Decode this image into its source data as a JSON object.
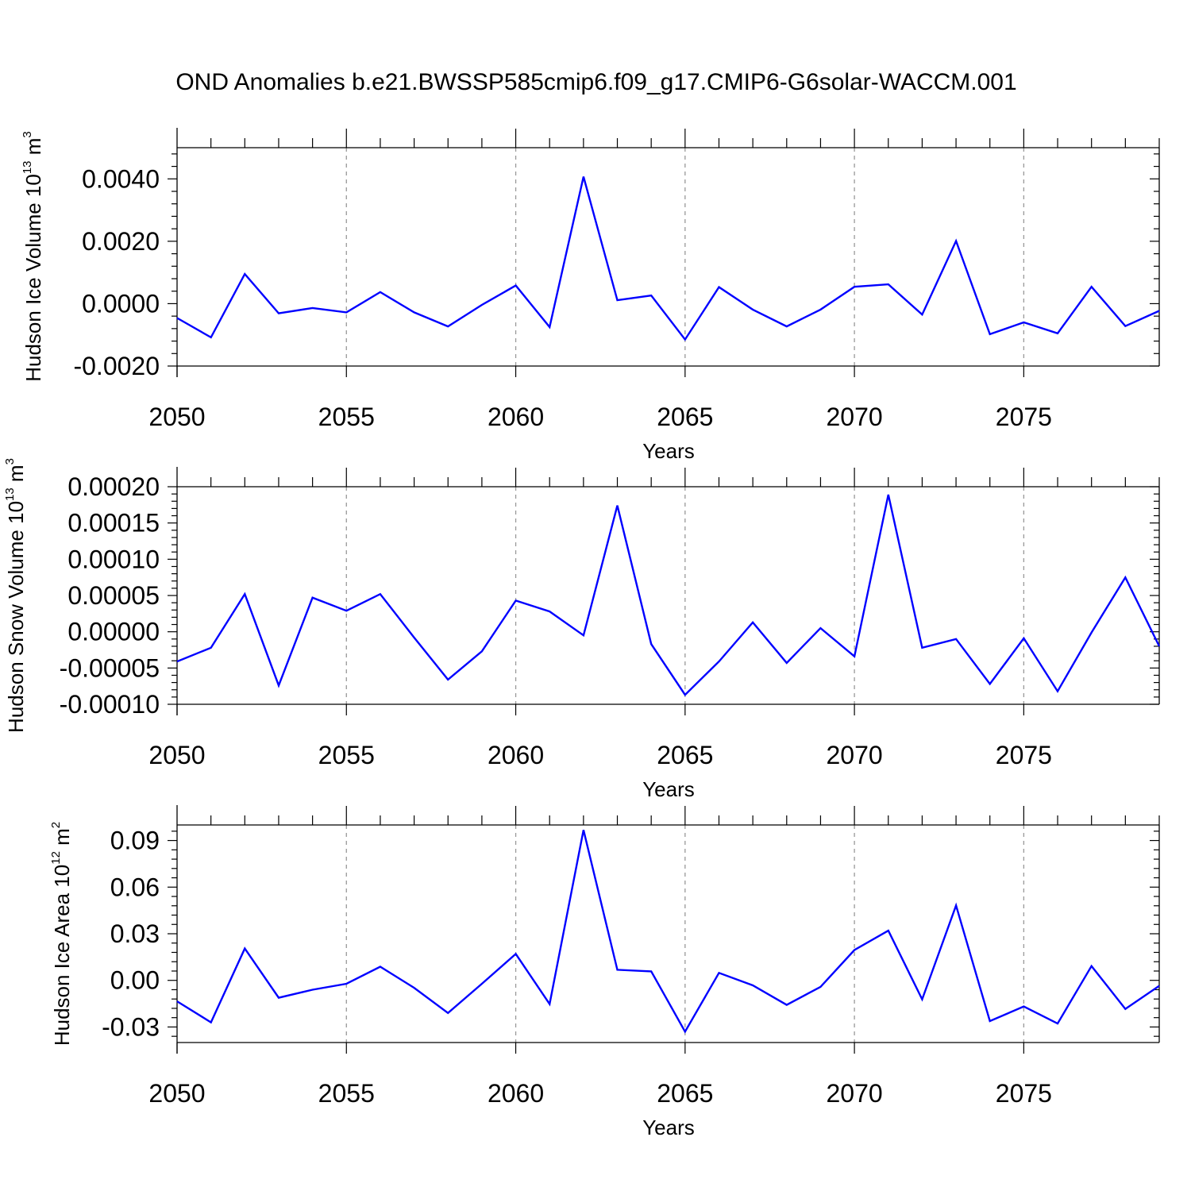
{
  "title": "OND Anomalies b.e21.BWSSP585cmip6.f09_g17.CMIP6-G6solar-WACCM.001",
  "colors": {
    "line": "#0000ff",
    "frame": "#000000",
    "grid": "#999999"
  },
  "chart_data": [
    {
      "type": "line",
      "xlabel": "Years",
      "ylabel": {
        "text": "Hudson Ice Volume 10",
        "exp": "13",
        "unit": " m",
        "unit_exp": "3"
      },
      "xlim": [
        2050,
        2079
      ],
      "ylim": [
        -0.002,
        0.005
      ],
      "xticks": [
        2050,
        2055,
        2060,
        2065,
        2070,
        2075
      ],
      "xtick_labels": [
        "2050",
        "2055",
        "2060",
        "2065",
        "2070",
        "2075"
      ],
      "yticks": [
        -0.002,
        0.0,
        0.002,
        0.004
      ],
      "ytick_labels": [
        "-0.0020",
        "0.0000",
        "0.0020",
        "0.0040"
      ],
      "grid": "vertical dashed at major x ticks",
      "x": [
        2050,
        2051,
        2052,
        2053,
        2054,
        2055,
        2056,
        2057,
        2058,
        2059,
        2060,
        2061,
        2062,
        2063,
        2064,
        2065,
        2066,
        2067,
        2068,
        2069,
        2070,
        2071,
        2072,
        2073,
        2074,
        2075,
        2076,
        2077,
        2078,
        2079
      ],
      "y": [
        -0.00046,
        -0.00108,
        0.00095,
        -0.00031,
        -0.00014,
        -0.00028,
        0.00037,
        -0.00028,
        -0.00073,
        -4e-05,
        0.00058,
        -0.00075,
        0.00407,
        0.00011,
        0.00026,
        -0.00115,
        0.00053,
        -0.00019,
        -0.00073,
        -0.00019,
        0.00054,
        0.00062,
        -0.00035,
        0.00201,
        -0.00098,
        -0.0006,
        -0.00095,
        0.00054,
        -0.00072,
        -0.00023
      ]
    },
    {
      "type": "line",
      "xlabel": "Years",
      "ylabel": {
        "text": "Hudson Snow Volume 10",
        "exp": "13",
        "unit": " m",
        "unit_exp": "3"
      },
      "xlim": [
        2050,
        2079
      ],
      "ylim": [
        -0.0001,
        0.0002
      ],
      "xticks": [
        2050,
        2055,
        2060,
        2065,
        2070,
        2075
      ],
      "xtick_labels": [
        "2050",
        "2055",
        "2060",
        "2065",
        "2070",
        "2075"
      ],
      "yticks": [
        -0.0001,
        -5e-05,
        0.0,
        5e-05,
        0.0001,
        0.00015,
        0.0002
      ],
      "ytick_labels": [
        "-0.00010",
        "-0.00005",
        "0.00000",
        "0.00005",
        "0.00010",
        "0.00015",
        "0.00020"
      ],
      "grid": "vertical dashed at major x ticks",
      "x": [
        2050,
        2051,
        2052,
        2053,
        2054,
        2055,
        2056,
        2057,
        2058,
        2059,
        2060,
        2061,
        2062,
        2063,
        2064,
        2065,
        2066,
        2067,
        2068,
        2069,
        2070,
        2071,
        2072,
        2073,
        2074,
        2075,
        2076,
        2077,
        2078,
        2079
      ],
      "y": [
        -4.1e-05,
        -2.2e-05,
        5.2e-05,
        -7.4e-05,
        4.7e-05,
        2.9e-05,
        5.2e-05,
        -8e-06,
        -6.6e-05,
        -2.7e-05,
        4.3e-05,
        2.8e-05,
        -5e-06,
        0.000174,
        -1.7e-05,
        -8.7e-05,
        -4.1e-05,
        1.3e-05,
        -4.3e-05,
        5e-06,
        -3.4e-05,
        0.000189,
        -2.2e-05,
        -1e-05,
        -7.2e-05,
        -9e-06,
        -8.2e-05,
        -1e-06,
        7.5e-05,
        -2e-05
      ]
    },
    {
      "type": "line",
      "xlabel": "Years",
      "ylabel": {
        "text": "Hudson Ice Area 10",
        "exp": "12",
        "unit": " m",
        "unit_exp": "2"
      },
      "xlim": [
        2050,
        2079
      ],
      "ylim": [
        -0.04,
        0.1
      ],
      "xticks": [
        2050,
        2055,
        2060,
        2065,
        2070,
        2075
      ],
      "xtick_labels": [
        "2050",
        "2055",
        "2060",
        "2065",
        "2070",
        "2075"
      ],
      "yticks": [
        -0.03,
        0.0,
        0.03,
        0.06,
        0.09
      ],
      "ytick_labels": [
        "-0.03",
        "0.00",
        "0.03",
        "0.06",
        "0.09"
      ],
      "grid": "vertical dashed at major x ticks",
      "x": [
        2050,
        2051,
        2052,
        2053,
        2054,
        2055,
        2056,
        2057,
        2058,
        2059,
        2060,
        2061,
        2062,
        2063,
        2064,
        2065,
        2066,
        2067,
        2068,
        2069,
        2070,
        2071,
        2072,
        2073,
        2074,
        2075,
        2076,
        2077,
        2078,
        2079
      ],
      "y": [
        -0.0135,
        -0.027,
        0.0205,
        -0.0112,
        -0.006,
        -0.0022,
        0.0088,
        -0.0048,
        -0.021,
        -0.0022,
        0.017,
        -0.0152,
        0.0968,
        0.0068,
        0.0058,
        -0.033,
        0.0048,
        -0.0032,
        -0.0158,
        -0.0042,
        0.0195,
        0.032,
        -0.0122,
        0.0482,
        -0.0262,
        -0.0168,
        -0.0278,
        0.0092,
        -0.0184,
        -0.0035
      ]
    }
  ]
}
